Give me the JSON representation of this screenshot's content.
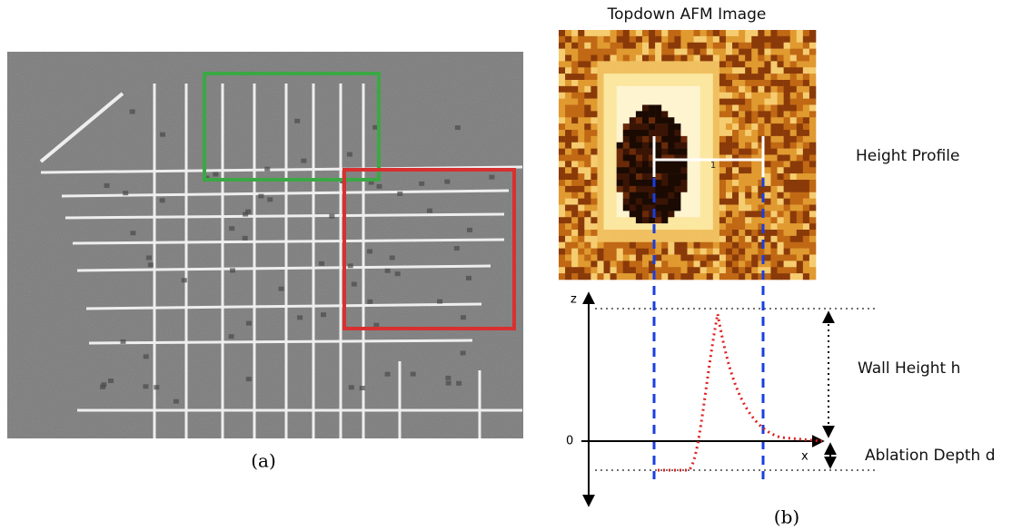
{
  "panel_a": {
    "caption": "(a)"
  },
  "panel_b": {
    "caption": "(b)",
    "title": "Topdown AFM Image",
    "profile_marker": "1",
    "height_profile_label": "Height Profile",
    "z_axis_label": "z",
    "zero_label": "0",
    "x_axis_label": "x",
    "wall_height_label": "Wall Height h",
    "ablation_depth_label": "Ablation Depth d"
  }
}
